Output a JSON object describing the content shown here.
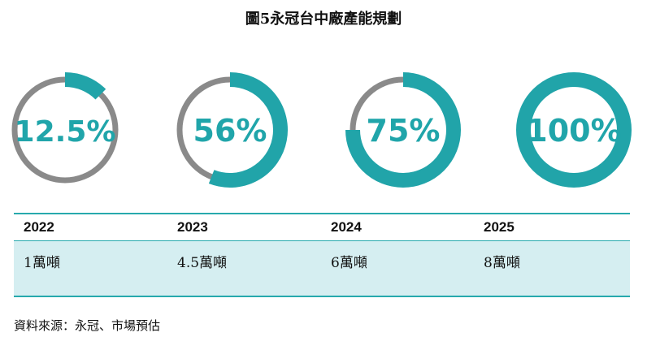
{
  "title": "圖5永冠台中廠產能規劃",
  "chart_data": {
    "type": "donut",
    "rings": [
      {
        "label": "12.5%",
        "value": 12.5
      },
      {
        "label": "56%",
        "value": 56
      },
      {
        "label": "75%",
        "value": 75
      },
      {
        "label": "100%",
        "value": 100
      }
    ],
    "colors": {
      "filled": "#21a4a9",
      "remaining": "#8a8a8a"
    }
  },
  "table": {
    "columns": [
      {
        "year": "2022",
        "capacity": "1萬噸"
      },
      {
        "year": "2023",
        "capacity": "4.5萬噸"
      },
      {
        "year": "2024",
        "capacity": "6萬噸"
      },
      {
        "year": "2025",
        "capacity": "8萬噸"
      }
    ]
  },
  "source": "資料來源：永冠、市場預估"
}
